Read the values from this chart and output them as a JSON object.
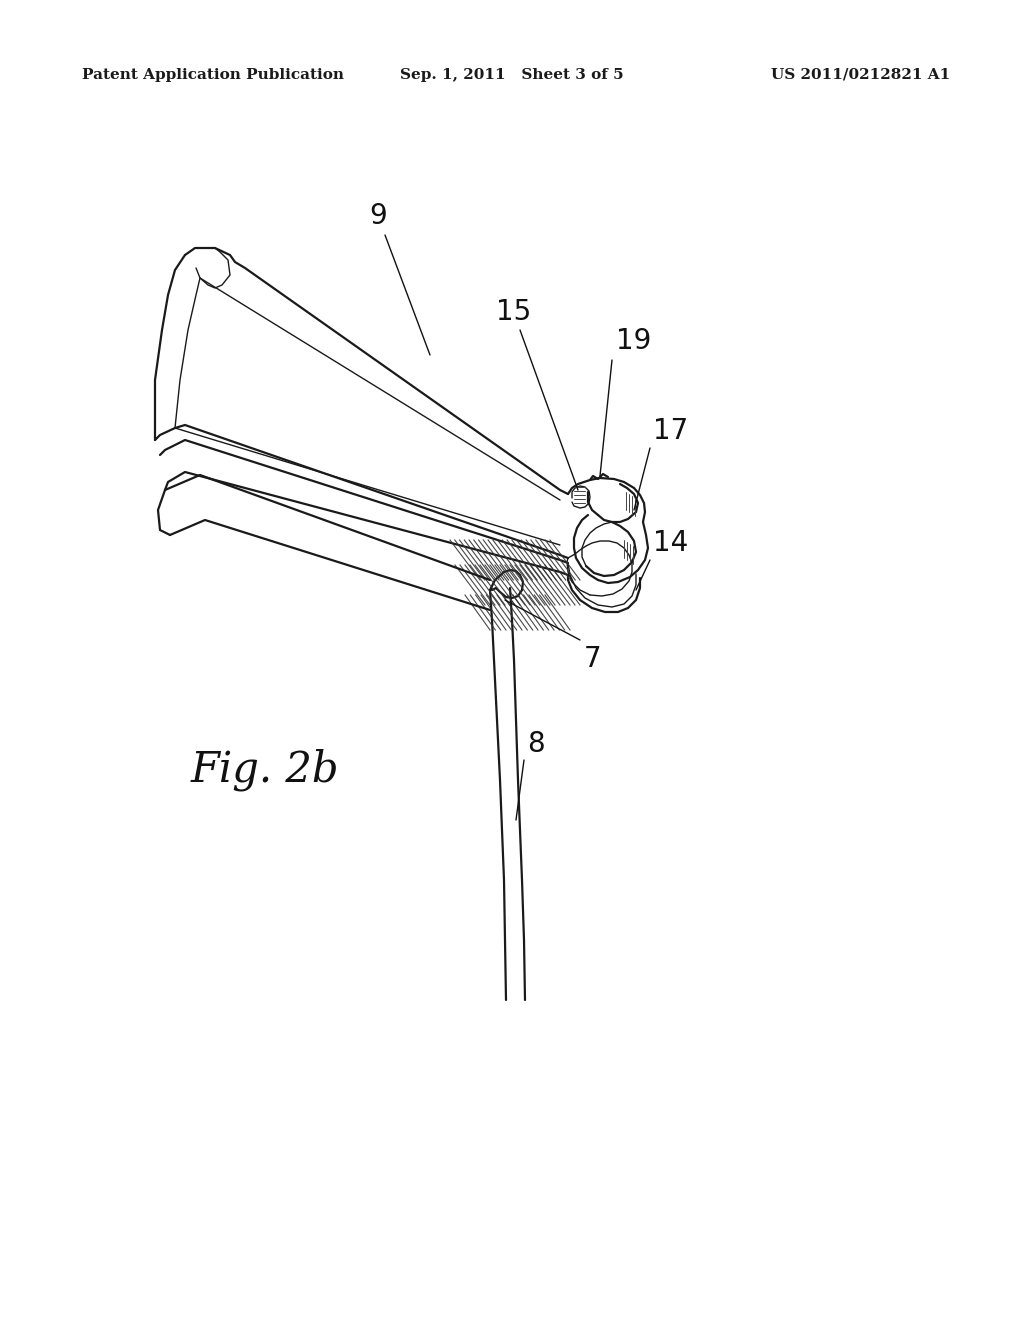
{
  "header_left": "Patent Application Publication",
  "header_mid": "Sep. 1, 2011   Sheet 3 of 5",
  "header_right": "US 2011/0212821 A1",
  "fig_label": "Fig. 2b",
  "background_color": "#ffffff",
  "line_color": "#1a1a1a",
  "header_fontsize": 11,
  "fig_label_fontsize": 30
}
